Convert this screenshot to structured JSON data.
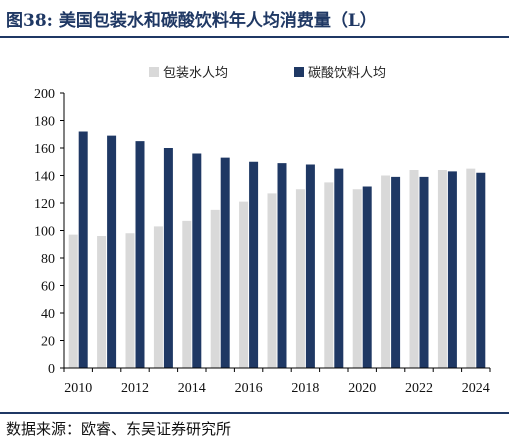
{
  "figure": {
    "title": "图38:  美国包装水和碳酸饮料年人均消费量（L）",
    "source": "数据来源：欧睿、东吴证券研究所"
  },
  "colors": {
    "series_water": "#d9d9d9",
    "series_soda": "#1f3864",
    "title": "#1f3864",
    "axis": "#000000"
  },
  "chart_data": {
    "type": "bar",
    "title": "",
    "xlabel": "",
    "ylabel": "",
    "ylim": [
      0,
      200
    ],
    "yticks": [
      0,
      20,
      40,
      60,
      80,
      100,
      120,
      140,
      160,
      180,
      200
    ],
    "categories": [
      "2010",
      "2011",
      "2012",
      "2013",
      "2014",
      "2015",
      "2016",
      "2017",
      "2018",
      "2019",
      "2020",
      "2021",
      "2022",
      "2023",
      "2024"
    ],
    "xtick_labels": [
      "2010",
      "",
      "2012",
      "",
      "2014",
      "",
      "2016",
      "",
      "2018",
      "",
      "2020",
      "",
      "2022",
      "",
      "2024"
    ],
    "legend_position": "top",
    "grid": false,
    "series": [
      {
        "name": "包装水人均",
        "values": [
          97,
          96,
          98,
          103,
          107,
          115,
          121,
          127,
          130,
          135,
          130,
          140,
          144,
          144,
          145
        ]
      },
      {
        "name": "碳酸饮料人均",
        "values": [
          172,
          169,
          165,
          160,
          156,
          153,
          150,
          149,
          148,
          145,
          132,
          139,
          139,
          143,
          142
        ]
      }
    ]
  }
}
